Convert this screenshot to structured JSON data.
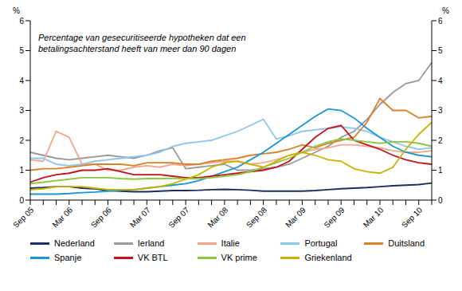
{
  "chart_data": {
    "type": "line",
    "title": "Percentage van gesecuritiseerde hypotheken dat een betalingsachterstand heeft van meer dan 90 dagen",
    "ylabel": "%",
    "categories": [
      "Sep 05",
      null,
      null,
      "Mar 06",
      null,
      null,
      "Sep 06",
      null,
      null,
      "Mar 07",
      null,
      null,
      "Sep 07",
      null,
      null,
      "Mar 08",
      null,
      null,
      "Sep 08",
      null,
      null,
      "Mar 09",
      null,
      null,
      "Sep 09",
      null,
      null,
      "Mar 10",
      null,
      null,
      "Sep 10",
      null
    ],
    "ylim": [
      0,
      6
    ],
    "yticks": [
      0,
      1,
      2,
      3,
      4,
      5,
      6
    ],
    "grid": false,
    "legend": "bottom",
    "series": [
      {
        "name": "Nederland",
        "color": "#1b2e5e",
        "values": [
          0.4,
          0.42,
          0.45,
          0.45,
          0.4,
          0.38,
          0.32,
          0.3,
          0.28,
          0.28,
          0.3,
          0.32,
          0.32,
          0.33,
          0.35,
          0.36,
          0.35,
          0.33,
          0.3,
          0.3,
          0.3,
          0.3,
          0.32,
          0.35,
          0.38,
          0.4,
          0.42,
          0.45,
          0.48,
          0.5,
          0.52,
          0.57
        ]
      },
      {
        "name": "Ierland",
        "color": "#999999",
        "values": [
          1.6,
          1.5,
          1.4,
          1.35,
          1.4,
          1.45,
          1.5,
          1.45,
          1.4,
          1.5,
          1.65,
          1.75,
          1.05,
          1.1,
          1.15,
          1.2,
          1.0,
          1.0,
          1.05,
          1.1,
          1.2,
          1.4,
          1.6,
          1.8,
          2.1,
          2.3,
          2.7,
          3.2,
          3.6,
          3.9,
          4.0,
          4.6
        ]
      },
      {
        "name": "Italie",
        "color": "#f4a68c",
        "values": [
          1.35,
          1.3,
          2.3,
          2.1,
          1.2,
          1.2,
          1.0,
          1.0,
          1.1,
          1.15,
          1.1,
          1.2,
          1.15,
          1.2,
          1.25,
          1.3,
          1.3,
          1.2,
          1.25,
          1.35,
          1.5,
          1.6,
          1.7,
          1.75,
          1.85,
          1.85,
          1.8,
          1.75,
          1.65,
          1.6,
          1.6,
          1.65
        ]
      },
      {
        "name": "Portugal",
        "color": "#8ec5ea",
        "values": [
          1.4,
          1.4,
          1.2,
          1.15,
          1.2,
          1.3,
          1.35,
          1.4,
          1.45,
          1.5,
          1.6,
          1.8,
          1.9,
          1.95,
          2.0,
          2.15,
          2.3,
          2.5,
          2.7,
          2.05,
          2.15,
          2.3,
          2.35,
          2.4,
          2.45,
          2.4,
          2.3,
          2.1,
          1.95,
          1.8,
          1.7,
          1.75
        ]
      },
      {
        "name": "Duitsland",
        "color": "#d9822b",
        "values": [
          1.0,
          1.05,
          1.05,
          1.1,
          1.15,
          1.2,
          1.2,
          1.2,
          1.15,
          1.25,
          1.25,
          1.25,
          1.2,
          1.2,
          1.3,
          1.35,
          1.4,
          1.5,
          1.55,
          1.6,
          1.7,
          1.85,
          1.75,
          1.9,
          2.0,
          2.1,
          2.6,
          3.4,
          3.0,
          3.0,
          2.75,
          2.8
        ]
      },
      {
        "name": "Spanje",
        "color": "#1a96d4",
        "values": [
          0.2,
          0.2,
          0.2,
          0.22,
          0.25,
          0.27,
          0.3,
          0.33,
          0.35,
          0.4,
          0.45,
          0.5,
          0.55,
          0.65,
          0.8,
          0.95,
          1.1,
          1.35,
          1.6,
          1.9,
          2.2,
          2.5,
          2.8,
          3.05,
          3.0,
          2.75,
          2.4,
          2.1,
          1.8,
          1.6,
          1.5,
          1.45
        ]
      },
      {
        "name": "VK BTL",
        "color": "#c0141c",
        "values": [
          0.6,
          0.75,
          0.85,
          0.9,
          1.0,
          1.0,
          1.05,
          0.95,
          0.85,
          0.85,
          0.85,
          0.8,
          0.75,
          0.75,
          0.8,
          0.85,
          0.9,
          0.95,
          1.0,
          1.1,
          1.3,
          1.7,
          2.1,
          2.4,
          2.5,
          2.0,
          1.85,
          1.7,
          1.5,
          1.35,
          1.25,
          1.2
        ]
      },
      {
        "name": "VK prime",
        "color": "#8cc63f",
        "values": [
          0.55,
          0.6,
          0.65,
          0.7,
          0.75,
          0.75,
          0.75,
          0.72,
          0.7,
          0.72,
          0.72,
          0.73,
          0.72,
          0.72,
          0.75,
          0.8,
          0.85,
          0.95,
          1.1,
          1.25,
          1.4,
          1.6,
          1.8,
          1.95,
          2.05,
          2.0,
          1.95,
          1.9,
          1.95,
          1.95,
          1.9,
          1.8
        ]
      },
      {
        "name": "Griekenland",
        "color": "#c8b400",
        "values": [
          0.35,
          0.38,
          0.45,
          0.45,
          0.45,
          0.4,
          0.35,
          0.35,
          0.35,
          0.4,
          0.45,
          0.55,
          0.7,
          0.85,
          1.1,
          1.25,
          1.3,
          1.2,
          1.1,
          1.3,
          1.5,
          1.6,
          1.5,
          1.35,
          1.3,
          1.05,
          0.95,
          0.9,
          1.1,
          1.7,
          2.2,
          2.6
        ]
      }
    ]
  }
}
